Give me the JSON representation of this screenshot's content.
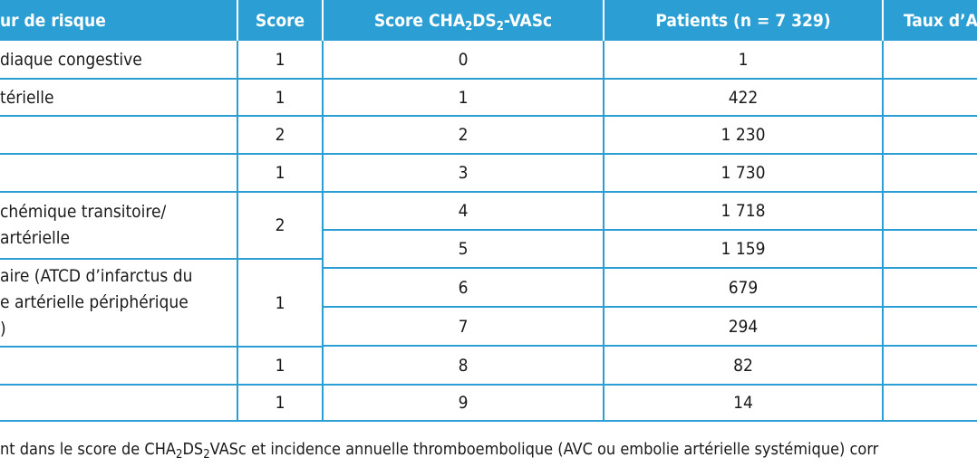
{
  "header": {
    "col_risk": "ur de risque",
    "col_score": "Score",
    "col_chads_pre": "Score CHA",
    "col_chads_sub1": "2",
    "col_chads_mid": "DS",
    "col_chads_sub2": "2",
    "col_chads_post": "-VASc",
    "col_patients": "Patients (n = 7 329)",
    "col_taux": "Taux d’A"
  },
  "risk_rows": [
    {
      "factor": "diaque congestive",
      "score": "1"
    },
    {
      "factor": "térielle",
      "score": "1"
    },
    {
      "factor": "",
      "score": "2"
    },
    {
      "factor": "",
      "score": "1"
    },
    {
      "factor_line1": "chémique transitoire/",
      "factor_line2": "artérielle",
      "score": "2"
    },
    {
      "factor_line1": "aire (ATCD d’infarctus du",
      "factor_line2": "e artérielle périphérique",
      "factor_line3": ")",
      "score": "1"
    },
    {
      "factor": "",
      "score": "1"
    },
    {
      "factor": "",
      "score": "1"
    }
  ],
  "score_rows": [
    {
      "score": "0",
      "patients": "1"
    },
    {
      "score": "1",
      "patients": "422"
    },
    {
      "score": "2",
      "patients": "1 230"
    },
    {
      "score": "3",
      "patients": "1 730"
    },
    {
      "score": "4",
      "patients": "1 718"
    },
    {
      "score": "5",
      "patients": "1 159"
    },
    {
      "score": "6",
      "patients": "679"
    },
    {
      "score": "7",
      "patients": "294"
    },
    {
      "score": "8",
      "patients": "82"
    },
    {
      "score": "9",
      "patients": "14"
    }
  ],
  "footnote": {
    "pre": "nt dans le score de CHA",
    "sub1": "2",
    "mid": "DS",
    "sub2": "2",
    "post": "VASc et incidence annuelle thromboembolique (AVC ou embolie artérielle systémique) corr"
  },
  "colors": {
    "header_bg": "#2b9fd4",
    "border": "#2b9fd4",
    "header_text": "#ffffff"
  }
}
